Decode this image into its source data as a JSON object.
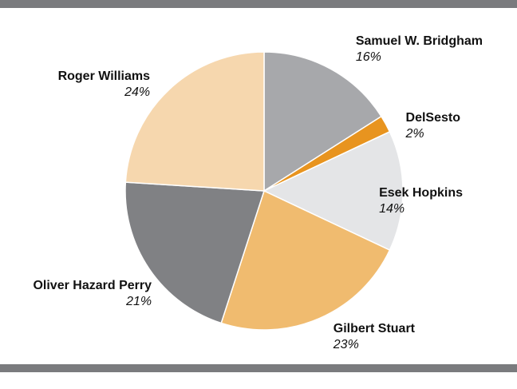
{
  "chart_data": {
    "type": "pie",
    "title": "",
    "slices": [
      {
        "label": "Samuel W. Bridgham",
        "value": 16,
        "display": "16%",
        "color": "#a7a8ab"
      },
      {
        "label": "DelSesto",
        "value": 2,
        "display": "2%",
        "color": "#e8941f"
      },
      {
        "label": "Esek Hopkins",
        "value": 14,
        "display": "14%",
        "color": "#e4e5e7"
      },
      {
        "label": "Gilbert Stuart",
        "value": 23,
        "display": "23%",
        "color": "#f0bb6f"
      },
      {
        "label": "Oliver Hazard Perry",
        "value": 21,
        "display": "21%",
        "color": "#808184"
      },
      {
        "label": "Roger Williams",
        "value": 24,
        "display": "24%",
        "color": "#f6d7ae"
      }
    ],
    "start_angle": "12 o'clock",
    "direction": "clockwise",
    "legend": "none (labels beside slices)"
  },
  "colors": {
    "rule": "#7a7b7e",
    "slice_border": "#ffffff",
    "label_text": "#111111"
  }
}
